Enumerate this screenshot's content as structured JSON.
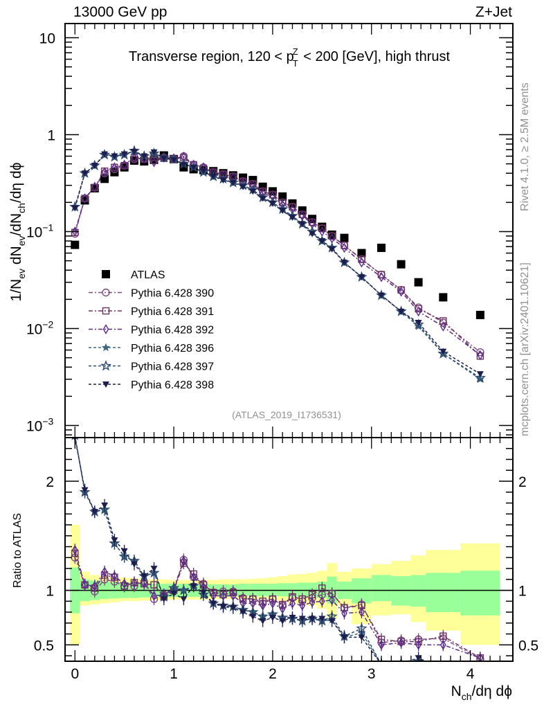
{
  "header": {
    "left": "13000 GeV pp",
    "right": "Z+Jet"
  },
  "side_labels": {
    "rivet": "Rivet 4.1.0, ≥ 2.5M events",
    "mcplots": "mcplots.cern.ch [arXiv:2401.10621]"
  },
  "chart_data": [
    {
      "type": "scatter",
      "panel": "main",
      "title": "Transverse region, 120 < p_T^Z < 200 [GeV], high thrust",
      "title_parts": {
        "pre": "Transverse region, 120 < p",
        "sup": "Z",
        "sub": "T",
        "post": " < 200 [GeV], high thrust"
      },
      "ylabel": "1/N_ev dN_ev/dN_ch/dη dϕ",
      "ylabel_parts": {
        "a": "1/N",
        "a_sub": "ev",
        "b": " dN",
        "b_sub": "ev",
        "c": "/dN",
        "c_sub": "ch",
        "d": "/dη dϕ"
      },
      "xlabel": "N_ch/dη dϕ",
      "xlabel_parts": {
        "a": "N",
        "a_sub": "ch",
        "b": "/dη dϕ"
      },
      "yscale": "log",
      "ylim": [
        0.00075,
        14
      ],
      "xlim": [
        -0.1,
        4.43
      ],
      "yticks": [
        {
          "value": 10,
          "label": "10"
        },
        {
          "value": 1,
          "label": "1"
        },
        {
          "value": 0.1,
          "label": "10",
          "exp": "−1"
        },
        {
          "value": 0.01,
          "label": "10",
          "exp": "−2"
        },
        {
          "value": 0.001,
          "label": "10",
          "exp": "−3"
        }
      ],
      "annotation": "(ATLAS_2019_I1736531)",
      "legend_position": "center-left",
      "x": [
        0.0,
        0.1,
        0.2,
        0.3,
        0.4,
        0.5,
        0.6,
        0.7,
        0.8,
        0.9,
        1.0,
        1.1,
        1.2,
        1.3,
        1.4,
        1.5,
        1.6,
        1.7,
        1.8,
        1.9,
        2.0,
        2.1,
        2.2,
        2.3,
        2.4,
        2.5,
        2.6,
        2.725,
        2.9,
        3.1,
        3.3,
        3.475,
        3.725,
        4.1
      ],
      "series": [
        {
          "name": "ATLAS",
          "marker": "square-filled",
          "color": "#000000",
          "dash": "none",
          "values": [
            0.073,
            0.21,
            0.28,
            0.35,
            0.41,
            0.46,
            0.54,
            0.53,
            0.55,
            0.61,
            0.56,
            0.46,
            0.44,
            0.43,
            0.42,
            0.4,
            0.38,
            0.36,
            0.34,
            0.29,
            0.26,
            0.23,
            0.195,
            0.165,
            0.135,
            0.112,
            0.093,
            0.086,
            0.06,
            0.068,
            0.046,
            0.03,
            0.021,
            0.0138
          ]
        },
        {
          "name": "Pythia 6.428 390",
          "marker": "circle-open",
          "color": "#7b4a7f",
          "dash": "6,3,2,3",
          "values": [
            0.095,
            0.22,
            0.285,
            0.4,
            0.44,
            0.48,
            0.56,
            0.57,
            0.54,
            0.58,
            0.56,
            0.6,
            0.49,
            0.46,
            0.41,
            0.39,
            0.37,
            0.33,
            0.31,
            0.26,
            0.24,
            0.2,
            0.18,
            0.15,
            0.125,
            0.108,
            0.09,
            0.072,
            0.052,
            0.036,
            0.025,
            0.0165,
            0.0115,
            0.0057
          ]
        },
        {
          "name": "Pythia 6.428 391",
          "marker": "square-open",
          "color": "#6b3060",
          "dash": "6,3,2,3",
          "values": [
            0.098,
            0.22,
            0.285,
            0.42,
            0.46,
            0.48,
            0.58,
            0.56,
            0.58,
            0.57,
            0.56,
            0.58,
            0.49,
            0.45,
            0.41,
            0.39,
            0.37,
            0.33,
            0.31,
            0.26,
            0.24,
            0.2,
            0.18,
            0.15,
            0.125,
            0.108,
            0.09,
            0.072,
            0.052,
            0.036,
            0.025,
            0.016,
            0.012,
            0.0052
          ]
        },
        {
          "name": "Pythia 6.428 392",
          "marker": "diamond-open",
          "color": "#5a2a8a",
          "dash": "6,3,2,3",
          "values": [
            0.1,
            0.22,
            0.29,
            0.41,
            0.46,
            0.49,
            0.58,
            0.57,
            0.52,
            0.58,
            0.57,
            0.59,
            0.49,
            0.46,
            0.4,
            0.38,
            0.36,
            0.32,
            0.3,
            0.25,
            0.23,
            0.19,
            0.17,
            0.145,
            0.12,
            0.1,
            0.085,
            0.068,
            0.048,
            0.034,
            0.024,
            0.015,
            0.0105,
            0.0053
          ]
        },
        {
          "name": "Pythia 6.428 396",
          "marker": "star-filled",
          "color": "#3d6680",
          "dash": "4,3",
          "values": [
            0.18,
            0.4,
            0.48,
            0.62,
            0.59,
            0.62,
            0.68,
            0.6,
            0.64,
            0.58,
            0.56,
            0.5,
            0.46,
            0.41,
            0.37,
            0.35,
            0.32,
            0.3,
            0.27,
            0.225,
            0.2,
            0.17,
            0.145,
            0.12,
            0.1,
            0.08,
            0.068,
            0.048,
            0.034,
            0.022,
            0.015,
            0.0105,
            0.0055,
            0.003
          ]
        },
        {
          "name": "Pythia 6.428 397",
          "marker": "star-open",
          "color": "#2e4a6e",
          "dash": "4,3",
          "values": [
            0.18,
            0.4,
            0.48,
            0.62,
            0.59,
            0.62,
            0.68,
            0.6,
            0.64,
            0.58,
            0.56,
            0.5,
            0.46,
            0.41,
            0.37,
            0.35,
            0.32,
            0.3,
            0.27,
            0.225,
            0.2,
            0.17,
            0.145,
            0.12,
            0.1,
            0.08,
            0.068,
            0.048,
            0.034,
            0.022,
            0.015,
            0.011,
            0.0055,
            0.0031
          ]
        },
        {
          "name": "Pythia 6.428 398",
          "marker": "triangle-down-filled",
          "color": "#1e1e4e",
          "dash": "4,3",
          "values": [
            0.175,
            0.4,
            0.48,
            0.63,
            0.6,
            0.63,
            0.67,
            0.6,
            0.66,
            0.57,
            0.55,
            0.49,
            0.46,
            0.42,
            0.37,
            0.34,
            0.32,
            0.29,
            0.26,
            0.22,
            0.195,
            0.165,
            0.14,
            0.12,
            0.095,
            0.08,
            0.066,
            0.048,
            0.034,
            0.022,
            0.015,
            0.0115,
            0.0058,
            0.0034
          ]
        }
      ]
    },
    {
      "type": "scatter",
      "panel": "ratio",
      "ylabel": "Ratio to ATLAS",
      "yscale": "linear",
      "ylim": [
        0.35,
        2.4
      ],
      "yticks": [
        {
          "value": 0.5,
          "label": "0.5"
        },
        {
          "value": 1,
          "label": "1"
        },
        {
          "value": 2,
          "label": "2"
        }
      ],
      "xticks": [
        {
          "value": 0,
          "label": "0"
        },
        {
          "value": 1,
          "label": "1"
        },
        {
          "value": 2,
          "label": "2"
        },
        {
          "value": 3,
          "label": "3"
        },
        {
          "value": 4,
          "label": "4"
        }
      ],
      "reference_line": 1,
      "bands": {
        "bin_edges": [
          -0.05,
          0.05,
          0.15,
          0.25,
          0.35,
          0.45,
          0.55,
          0.65,
          0.75,
          0.85,
          0.95,
          1.05,
          1.15,
          1.25,
          1.35,
          1.45,
          1.55,
          1.65,
          1.75,
          1.85,
          1.95,
          2.05,
          2.15,
          2.25,
          2.35,
          2.45,
          2.55,
          2.65,
          2.8,
          3.0,
          3.2,
          3.4,
          3.55,
          3.9,
          4.3
        ],
        "green_low": [
          0.79,
          0.9,
          0.91,
          0.92,
          0.925,
          0.93,
          0.93,
          0.935,
          0.935,
          0.94,
          0.94,
          0.94,
          0.94,
          0.94,
          0.945,
          0.945,
          0.945,
          0.945,
          0.945,
          0.945,
          0.945,
          0.945,
          0.94,
          0.94,
          0.94,
          0.93,
          0.88,
          0.92,
          0.88,
          0.9,
          0.86,
          0.85,
          0.8,
          0.77
        ],
        "green_high": [
          1.21,
          1.1,
          1.09,
          1.08,
          1.075,
          1.07,
          1.07,
          1.065,
          1.065,
          1.06,
          1.06,
          1.06,
          1.06,
          1.06,
          1.055,
          1.055,
          1.055,
          1.06,
          1.06,
          1.06,
          1.06,
          1.065,
          1.065,
          1.07,
          1.07,
          1.08,
          1.125,
          1.08,
          1.11,
          1.14,
          1.13,
          1.14,
          1.16,
          1.18
        ],
        "yellow_low": [
          0.5,
          0.86,
          0.87,
          0.88,
          0.89,
          0.9,
          0.9,
          0.905,
          0.91,
          0.91,
          0.915,
          0.915,
          0.915,
          0.915,
          0.92,
          0.92,
          0.92,
          0.92,
          0.92,
          0.92,
          0.91,
          0.9,
          0.88,
          0.87,
          0.86,
          0.83,
          0.74,
          0.86,
          0.69,
          0.77,
          0.78,
          0.71,
          0.63,
          0.5
        ],
        "yellow_high": [
          1.6,
          1.17,
          1.14,
          1.13,
          1.12,
          1.115,
          1.11,
          1.105,
          1.1,
          1.1,
          1.095,
          1.095,
          1.095,
          1.095,
          1.095,
          1.1,
          1.1,
          1.1,
          1.105,
          1.11,
          1.12,
          1.13,
          1.145,
          1.15,
          1.16,
          1.18,
          1.25,
          1.17,
          1.2,
          1.24,
          1.27,
          1.32,
          1.37,
          1.43
        ]
      },
      "band_colors": {
        "green": "#99ff99",
        "yellow": "#ffff99"
      },
      "series": [
        {
          "name": "Pythia 6.428 390",
          "values": [
            1.3,
            1.05,
            0.99,
            1.1,
            1.08,
            1.04,
            1.04,
            1.07,
            0.92,
            0.96,
            1.0,
            1.28,
            1.12,
            1.06,
            0.98,
            0.99,
            0.99,
            0.93,
            0.92,
            0.88,
            0.92,
            0.86,
            0.93,
            0.9,
            0.93,
            0.96,
            0.97,
            0.84,
            0.87,
            0.52,
            0.54,
            0.55,
            0.56,
            0.37
          ]
        },
        {
          "name": "Pythia 6.428 391",
          "values": [
            1.34,
            1.05,
            1.02,
            1.14,
            1.12,
            1.04,
            1.07,
            1.06,
            1.05,
            0.94,
            1.0,
            1.25,
            1.15,
            1.05,
            0.98,
            0.96,
            0.98,
            0.92,
            0.92,
            0.9,
            0.92,
            0.87,
            0.94,
            0.92,
            0.96,
            1.02,
            0.97,
            0.84,
            0.86,
            0.55,
            0.53,
            0.53,
            0.58,
            0.38
          ]
        },
        {
          "name": "Pythia 6.428 392",
          "values": [
            1.37,
            1.05,
            1.04,
            1.17,
            1.13,
            1.06,
            1.07,
            1.07,
            0.95,
            0.96,
            1.02,
            1.27,
            1.12,
            1.03,
            0.95,
            0.95,
            0.95,
            0.88,
            0.88,
            0.86,
            0.88,
            0.83,
            0.88,
            0.86,
            0.89,
            0.9,
            0.91,
            0.79,
            0.8,
            0.5,
            0.52,
            0.5,
            0.5,
            0.38
          ]
        },
        {
          "name": "Pythia 6.428 396",
          "values": [
            2.42,
            1.9,
            1.72,
            1.74,
            1.43,
            1.31,
            1.27,
            1.13,
            1.16,
            0.94,
            1.02,
            1.0,
            1.04,
            0.96,
            0.88,
            0.86,
            0.85,
            0.82,
            0.8,
            0.76,
            0.78,
            0.75,
            0.74,
            0.72,
            0.74,
            0.72,
            0.73,
            0.57,
            0.61,
            0.32,
            0.33,
            0.35,
            0.26,
            0.22
          ]
        },
        {
          "name": "Pythia 6.428 397",
          "values": [
            2.42,
            1.9,
            1.72,
            1.74,
            1.43,
            1.31,
            1.27,
            1.13,
            1.16,
            0.94,
            1.02,
            1.0,
            1.04,
            0.96,
            0.88,
            0.86,
            0.85,
            0.82,
            0.8,
            0.76,
            0.78,
            0.75,
            0.74,
            0.72,
            0.74,
            0.72,
            0.76,
            0.58,
            0.65,
            0.32,
            0.33,
            0.35,
            0.26,
            0.22
          ]
        },
        {
          "name": "Pythia 6.428 398",
          "values": [
            2.4,
            1.92,
            1.72,
            1.78,
            1.46,
            1.36,
            1.24,
            1.13,
            1.2,
            0.92,
            0.97,
            0.92,
            1.04,
            0.98,
            0.88,
            0.85,
            0.84,
            0.8,
            0.76,
            0.72,
            0.75,
            0.72,
            0.75,
            0.74,
            0.74,
            0.74,
            0.72,
            0.57,
            0.57,
            0.32,
            0.33,
            0.38,
            0.28,
            0.25
          ]
        }
      ]
    }
  ]
}
